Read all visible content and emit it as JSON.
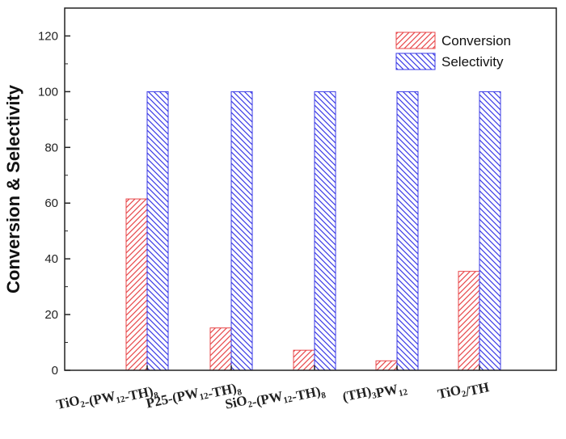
{
  "chart_data": {
    "type": "bar",
    "ylabel": "Conversion & Selectivity",
    "ylim": [
      0,
      130
    ],
    "yticks": [
      0,
      20,
      40,
      60,
      80,
      100,
      120
    ],
    "grid": false,
    "legend_position": "top-right",
    "categories": [
      {
        "main": "TiO",
        "parts": [
          [
            "TiO",
            ""
          ],
          [
            "2",
            "sub"
          ],
          [
            "-(PW",
            ""
          ],
          [
            "12",
            "sub"
          ],
          [
            "-TH)",
            ""
          ],
          [
            "8",
            "sub"
          ]
        ]
      },
      {
        "main": "P25",
        "parts": [
          [
            "P25-(PW",
            ""
          ],
          [
            "12",
            "sub"
          ],
          [
            "-TH)",
            ""
          ],
          [
            "8",
            "sub"
          ]
        ]
      },
      {
        "main": "SiO",
        "parts": [
          [
            "SiO",
            ""
          ],
          [
            "2",
            "sub"
          ],
          [
            "-(PW",
            ""
          ],
          [
            "12",
            "sub"
          ],
          [
            "-TH)",
            ""
          ],
          [
            "8",
            "sub"
          ]
        ]
      },
      {
        "main": "TH",
        "parts": [
          [
            "(TH)",
            ""
          ],
          [
            "3",
            "sub"
          ],
          [
            "PW",
            ""
          ],
          [
            "12",
            "sub"
          ]
        ]
      },
      {
        "main": "TiO2TH",
        "parts": [
          [
            "TiO",
            ""
          ],
          [
            "2",
            "sub"
          ],
          [
            "/TH",
            ""
          ]
        ]
      }
    ],
    "series": [
      {
        "name": "Conversion",
        "color": "#e8474a",
        "values": [
          61.5,
          15.2,
          7.2,
          3.4,
          35.5
        ]
      },
      {
        "name": "Selectivity",
        "color": "#3a3ae6",
        "values": [
          100,
          100,
          100,
          100,
          100
        ]
      }
    ]
  }
}
